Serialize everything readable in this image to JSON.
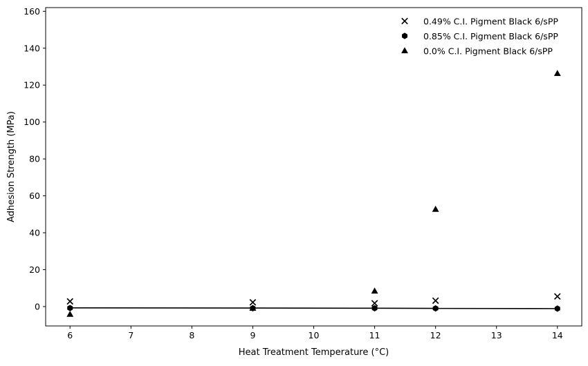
{
  "chart_data": {
    "type": "scatter",
    "title": "",
    "xlabel": "Heat Treatment Temperature (°C)",
    "ylabel": "Adhesion Strength (MPa)",
    "xlim": [
      5.6,
      14.4
    ],
    "ylim": [
      -10.5,
      162
    ],
    "x_ticks": [
      6,
      7,
      8,
      9,
      10,
      11,
      12,
      13,
      14
    ],
    "y_ticks": [
      0,
      20,
      40,
      60,
      80,
      100,
      120,
      140,
      160
    ],
    "grid": false,
    "legend_position": "top-right",
    "series": [
      {
        "name": "0.49% C.I. Pigment Black 6/sPP",
        "marker": "x",
        "color": "#000000",
        "x": [
          6,
          9,
          11,
          12,
          14
        ],
        "y": [
          2.8,
          2.3,
          1.8,
          3.2,
          5.5
        ]
      },
      {
        "name": "0.85% C.I. Pigment Black 6/sPP",
        "marker": "hexagon",
        "color": "#000000",
        "x": [
          6,
          9,
          11,
          12,
          14
        ],
        "y": [
          -0.8,
          -0.9,
          -0.9,
          -1.0,
          -1.1
        ]
      },
      {
        "name": "0.0% C.I. Pigment Black 6/sPP",
        "marker": "triangle",
        "color": "#000000",
        "x": [
          6,
          9,
          11,
          12,
          14
        ],
        "y": [
          -4.2,
          -0.9,
          8.4,
          52.7,
          126.3
        ]
      }
    ],
    "fit_line": {
      "color": "#000000",
      "x": [
        6,
        9,
        11,
        12,
        14
      ],
      "y": [
        -0.7,
        -0.8,
        -0.9,
        -1.0,
        -1.1
      ]
    }
  }
}
